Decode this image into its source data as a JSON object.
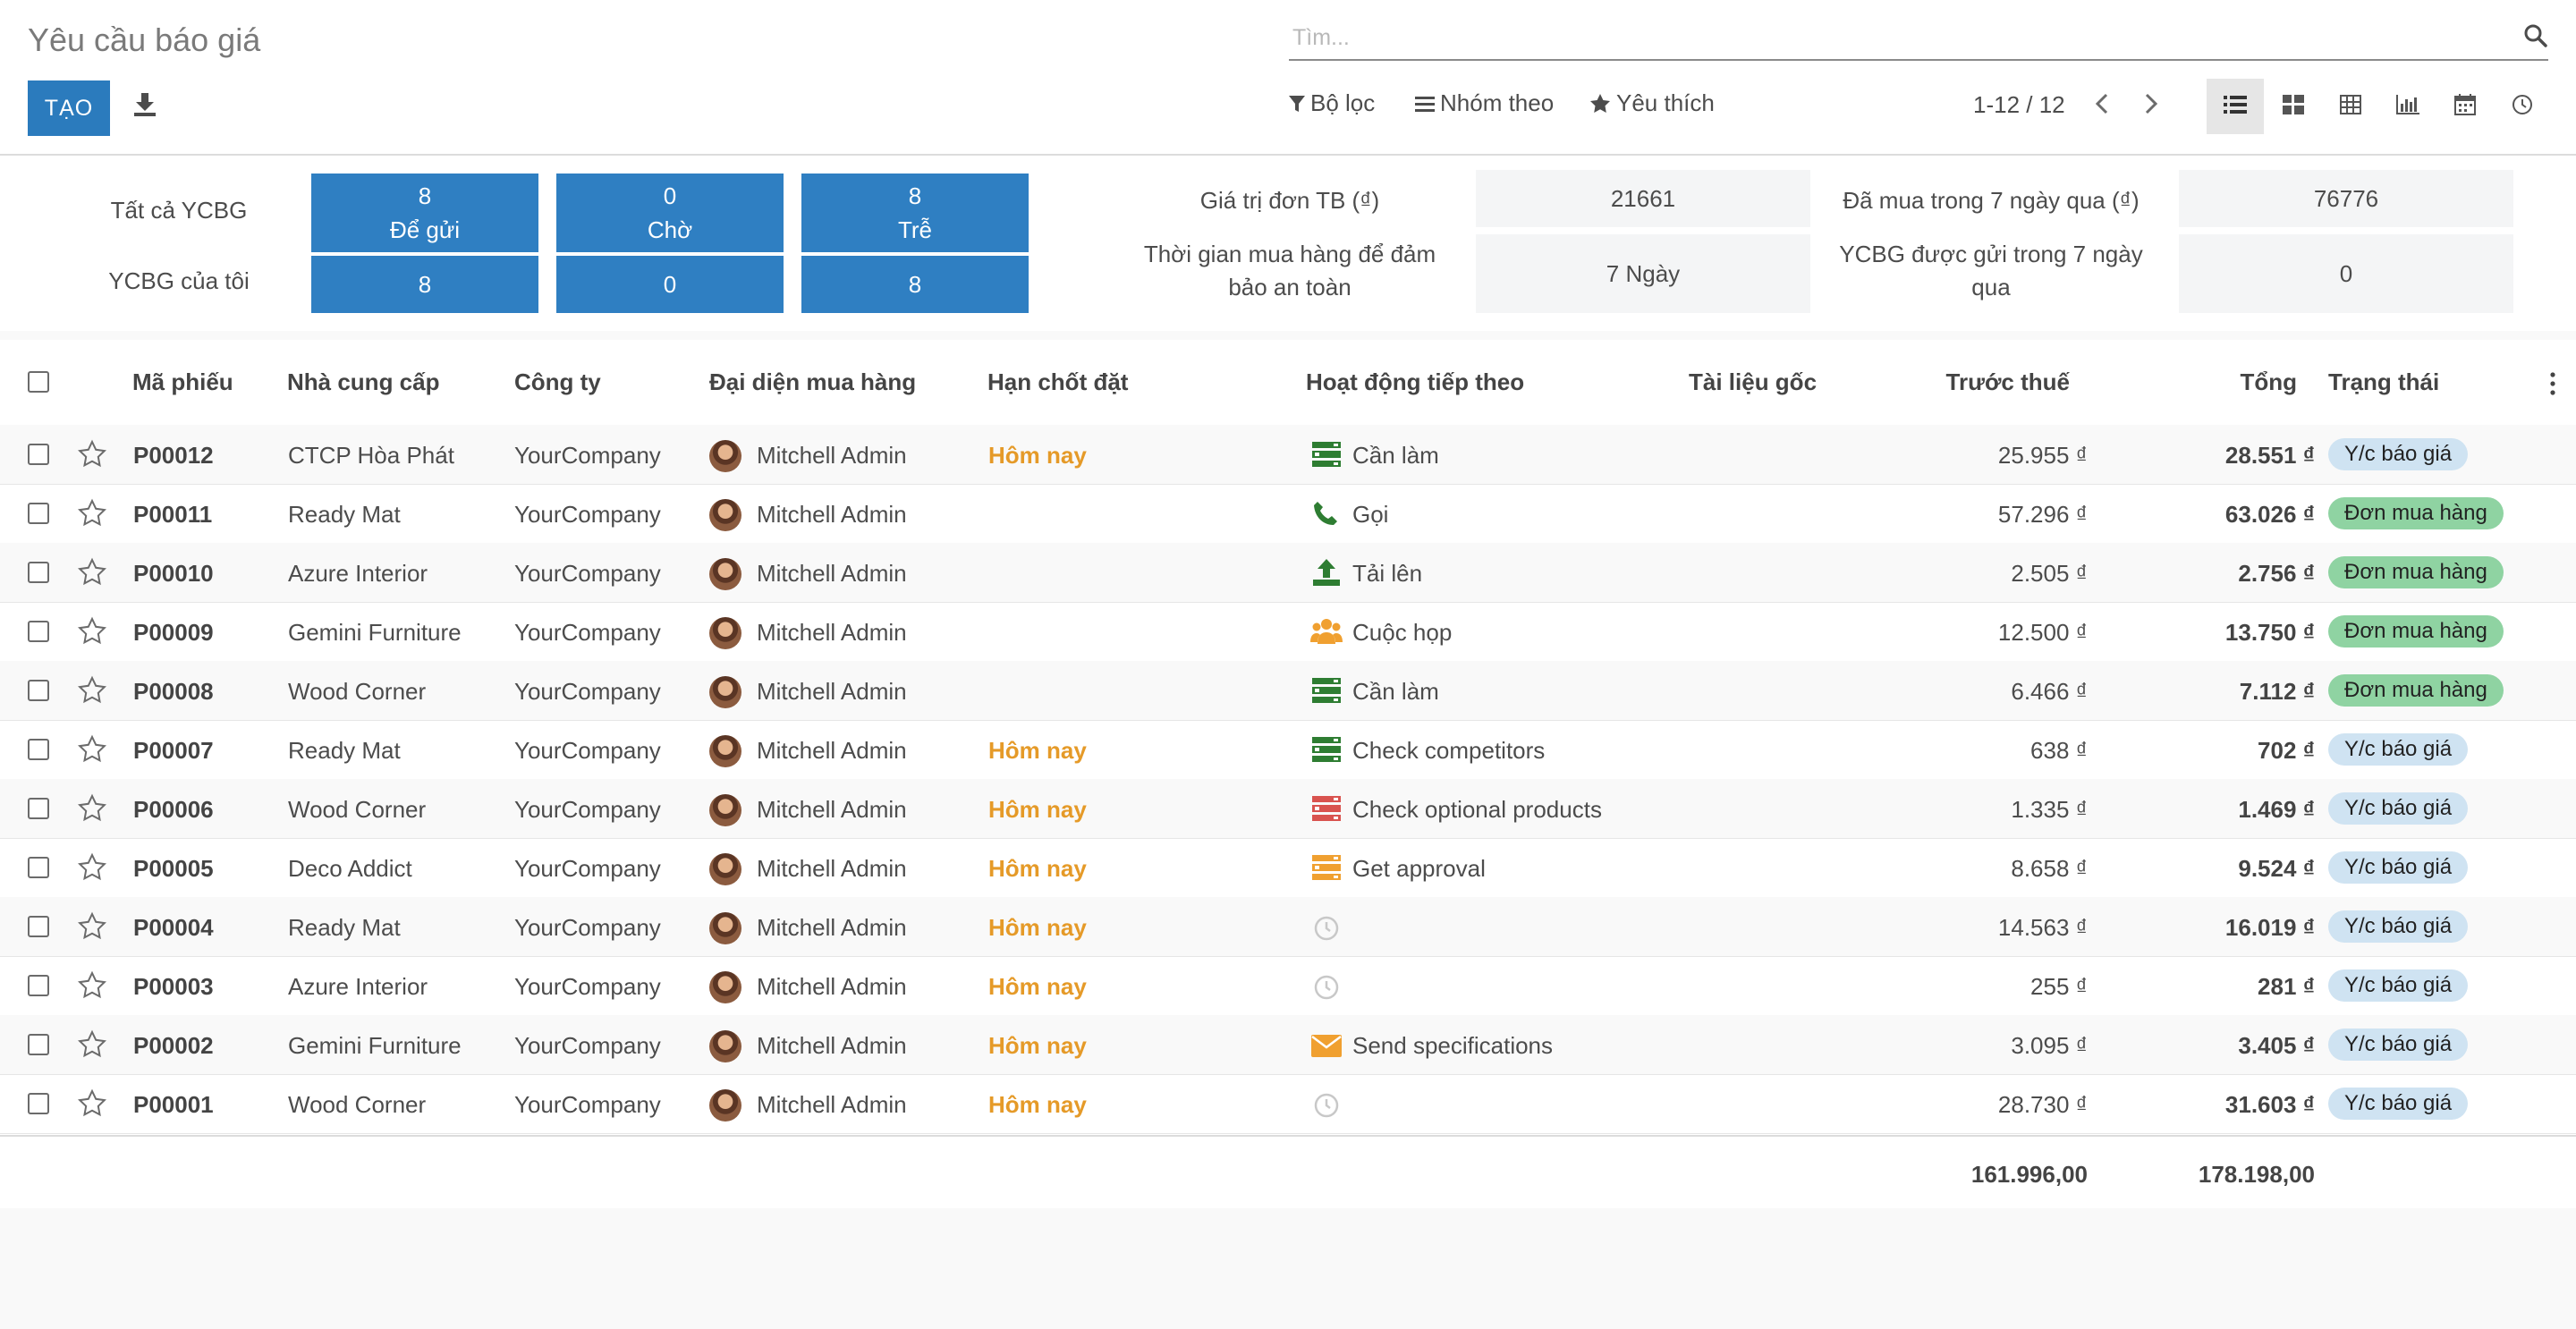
{
  "header": {
    "title": "Yêu cầu báo giá",
    "create_label": "TẠO",
    "search_placeholder": "Tìm...",
    "filter_label": "Bộ lọc",
    "groupby_label": "Nhóm theo",
    "favorites_label": "Yêu thích",
    "pager_value": "1-12 / 12",
    "views": [
      "list-view-icon",
      "kanban-view-icon",
      "pivot-view-icon",
      "graph-view-icon",
      "calendar-view-icon",
      "activity-view-icon"
    ],
    "active_view": "list"
  },
  "dashboard": {
    "all_rfqs_label": "Tất cả YCBG",
    "my_rfqs_label": "YCBG của tôi",
    "tiles": [
      {
        "count": "8",
        "label": "Để gửi",
        "mine": "8"
      },
      {
        "count": "0",
        "label": "Chờ",
        "mine": "0"
      },
      {
        "count": "8",
        "label": "Trễ",
        "mine": "8"
      }
    ],
    "stats": {
      "avg_order_label": "Giá trị đơn TB (₫)",
      "avg_order_value": "21661",
      "lead_time_label": "Thời gian mua hàng để đảm bảo an toàn",
      "lead_time_value": "7  Ngày",
      "purchased_label": "Đã mua trong 7 ngày qua (₫)",
      "purchased_value": "76776",
      "sent_label": "YCBG được gửi trong 7 ngày qua",
      "sent_value": "0"
    }
  },
  "table": {
    "columns": {
      "ref": "Mã phiếu",
      "vendor": "Nhà cung cấp",
      "company": "Công ty",
      "buyer": "Đại diện mua hàng",
      "deadline": "Hạn chốt đặt",
      "activity": "Hoạt động tiếp theo",
      "origin": "Tài liệu gốc",
      "untaxed": "Trước thuế",
      "total": "Tổng",
      "status": "Trạng thái"
    },
    "rows": [
      {
        "ref": "P00012",
        "vendor": "CTCP Hòa Phát",
        "company": "YourCompany",
        "buyer": "Mitchell Admin",
        "deadline": "Hôm nay",
        "activity_icon": "todo",
        "activity_color": "#2e7d32",
        "activity": "Cần làm",
        "untaxed": "25.955 ₫",
        "total": "28.551 ₫",
        "status": "Y/c báo giá",
        "status_type": "quote"
      },
      {
        "ref": "P00011",
        "vendor": "Ready Mat",
        "company": "YourCompany",
        "buyer": "Mitchell Admin",
        "deadline": "",
        "activity_icon": "phone",
        "activity_color": "#2e7d32",
        "activity": "Gọi",
        "untaxed": "57.296 ₫",
        "total": "63.026 ₫",
        "status": "Đơn mua hàng",
        "status_type": "po"
      },
      {
        "ref": "P00010",
        "vendor": "Azure Interior",
        "company": "YourCompany",
        "buyer": "Mitchell Admin",
        "deadline": "",
        "activity_icon": "upload",
        "activity_color": "#2e7d32",
        "activity": "Tải lên",
        "untaxed": "2.505 ₫",
        "total": "2.756 ₫",
        "status": "Đơn mua hàng",
        "status_type": "po"
      },
      {
        "ref": "P00009",
        "vendor": "Gemini Furniture",
        "company": "YourCompany",
        "buyer": "Mitchell Admin",
        "deadline": "",
        "activity_icon": "meeting",
        "activity_color": "#f0a030",
        "activity": "Cuộc họp",
        "untaxed": "12.500 ₫",
        "total": "13.750 ₫",
        "status": "Đơn mua hàng",
        "status_type": "po"
      },
      {
        "ref": "P00008",
        "vendor": "Wood Corner",
        "company": "YourCompany",
        "buyer": "Mitchell Admin",
        "deadline": "",
        "activity_icon": "todo",
        "activity_color": "#2e7d32",
        "activity": "Cần làm",
        "untaxed": "6.466 ₫",
        "total": "7.112 ₫",
        "status": "Đơn mua hàng",
        "status_type": "po"
      },
      {
        "ref": "P00007",
        "vendor": "Ready Mat",
        "company": "YourCompany",
        "buyer": "Mitchell Admin",
        "deadline": "Hôm nay",
        "activity_icon": "todo",
        "activity_color": "#2e7d32",
        "activity": "Check competitors",
        "untaxed": "638 ₫",
        "total": "702 ₫",
        "status": "Y/c báo giá",
        "status_type": "quote"
      },
      {
        "ref": "P00006",
        "vendor": "Wood Corner",
        "company": "YourCompany",
        "buyer": "Mitchell Admin",
        "deadline": "Hôm nay",
        "activity_icon": "todo",
        "activity_color": "#d9534f",
        "activity": "Check optional products",
        "untaxed": "1.335 ₫",
        "total": "1.469 ₫",
        "status": "Y/c báo giá",
        "status_type": "quote"
      },
      {
        "ref": "P00005",
        "vendor": "Deco Addict",
        "company": "YourCompany",
        "buyer": "Mitchell Admin",
        "deadline": "Hôm nay",
        "activity_icon": "todo",
        "activity_color": "#f0a030",
        "activity": "Get approval",
        "untaxed": "8.658 ₫",
        "total": "9.524 ₫",
        "status": "Y/c báo giá",
        "status_type": "quote"
      },
      {
        "ref": "P00004",
        "vendor": "Ready Mat",
        "company": "YourCompany",
        "buyer": "Mitchell Admin",
        "deadline": "Hôm nay",
        "activity_icon": "clock",
        "activity_color": "#c8c8c8",
        "activity": "",
        "untaxed": "14.563 ₫",
        "total": "16.019 ₫",
        "status": "Y/c báo giá",
        "status_type": "quote"
      },
      {
        "ref": "P00003",
        "vendor": "Azure Interior",
        "company": "YourCompany",
        "buyer": "Mitchell Admin",
        "deadline": "Hôm nay",
        "activity_icon": "clock",
        "activity_color": "#c8c8c8",
        "activity": "",
        "untaxed": "255 ₫",
        "total": "281 ₫",
        "status": "Y/c báo giá",
        "status_type": "quote"
      },
      {
        "ref": "P00002",
        "vendor": "Gemini Furniture",
        "company": "YourCompany",
        "buyer": "Mitchell Admin",
        "deadline": "Hôm nay",
        "activity_icon": "email",
        "activity_color": "#f0a030",
        "activity": "Send specifications",
        "untaxed": "3.095 ₫",
        "total": "3.405 ₫",
        "status": "Y/c báo giá",
        "status_type": "quote"
      },
      {
        "ref": "P00001",
        "vendor": "Wood Corner",
        "company": "YourCompany",
        "buyer": "Mitchell Admin",
        "deadline": "Hôm nay",
        "activity_icon": "clock",
        "activity_color": "#c8c8c8",
        "activity": "",
        "untaxed": "28.730 ₫",
        "total": "31.603 ₫",
        "status": "Y/c báo giá",
        "status_type": "quote"
      }
    ],
    "footer": {
      "untaxed_total": "161.996,00",
      "total_total": "178.198,00"
    }
  }
}
